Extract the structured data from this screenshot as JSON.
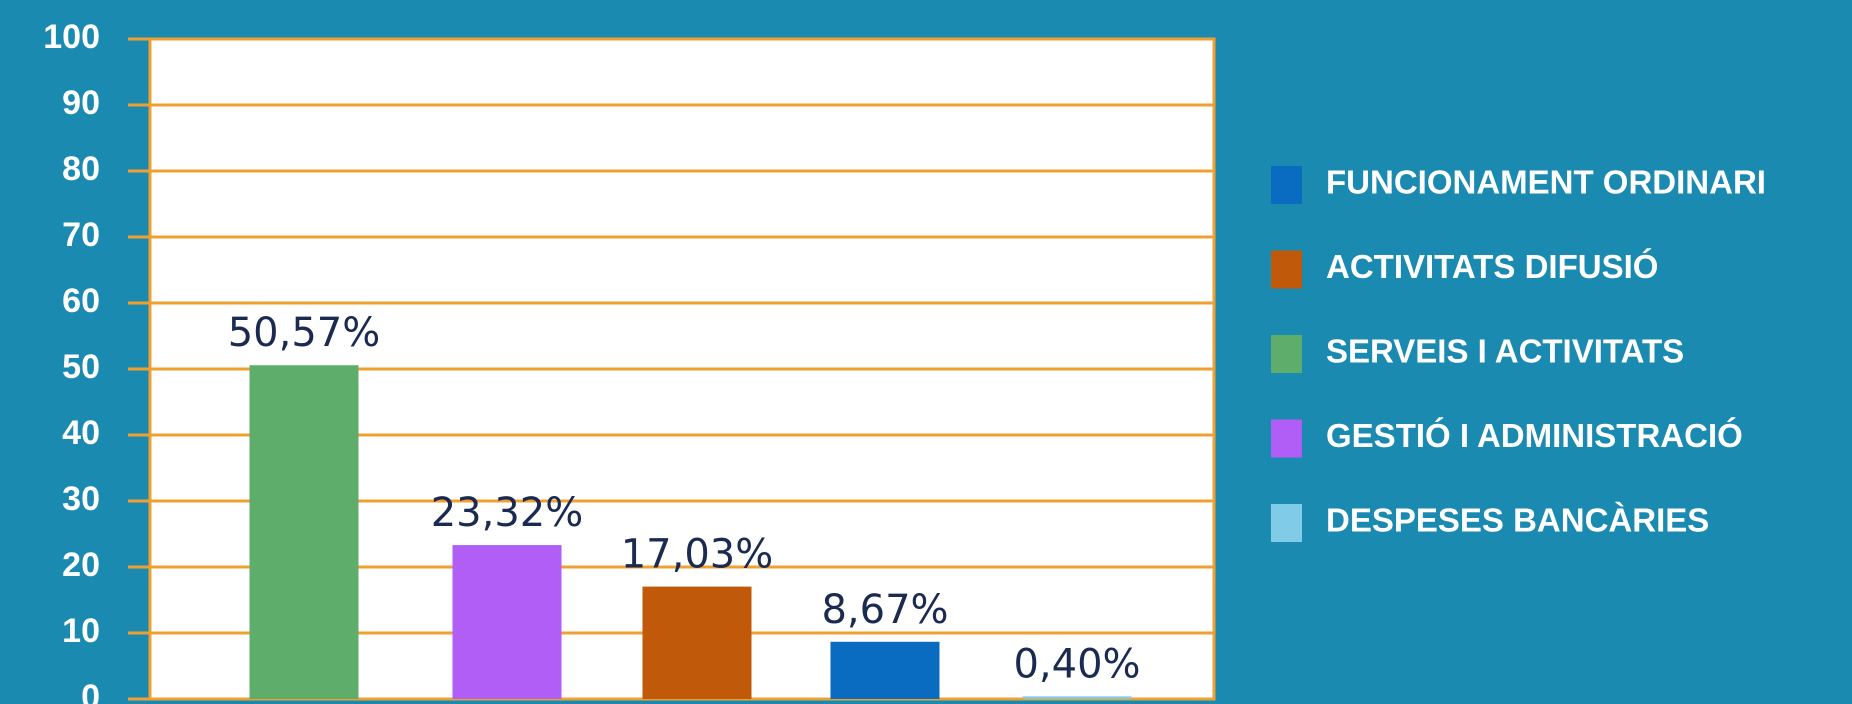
{
  "chart_data": {
    "type": "bar",
    "categories": [
      null,
      null,
      null,
      null,
      null
    ],
    "values": [
      50.57,
      23.32,
      17.03,
      8.67,
      0.4
    ],
    "value_labels": [
      "50,57%",
      "23,32%",
      "17,03%",
      "8,67%",
      "0,40%"
    ],
    "colors": [
      "#5fad6a",
      "#b05ef5",
      "#c05a0a",
      "#0a6cc0",
      "#80cce8"
    ],
    "ylim": [
      0,
      100
    ],
    "yticks": [
      0,
      10,
      20,
      30,
      40,
      50,
      60,
      70,
      80,
      90,
      100
    ],
    "grid": true,
    "legend": [
      {
        "name": "FUNCIONAMENT ORDINARI",
        "color": "#0a6cc0"
      },
      {
        "name": "ACTIVITATS DIFUSIÓ",
        "color": "#c05a0a"
      },
      {
        "name": "SERVEIS I ACTIVITATS",
        "color": "#5fad6a"
      },
      {
        "name": "GESTIÓ I ADMINISTRACIÓ",
        "color": "#b05ef5"
      },
      {
        "name": "DESPESES BANCÀRIES",
        "color": "#80cce8"
      }
    ]
  }
}
